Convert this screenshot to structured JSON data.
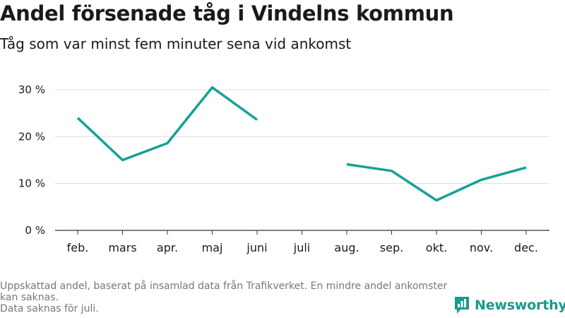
{
  "title": "Andel försenade tåg i Vindelns kommun",
  "subtitle": "Tåg som var minst fem minuter sena vid ankomst",
  "footnote": {
    "line1": "Uppskattad andel, baserat på insamlad data från Trafikverket. En mindre andel ankomster kan saknas.",
    "line2": "Data saknas för juli."
  },
  "brand": {
    "name": "Newsworthy",
    "icon": "newsworthy-logo-icon"
  },
  "colors": {
    "line": "#13a295",
    "grid": "#dddddd",
    "axis": "#333333",
    "text": "#1a1a1a",
    "muted": "#777777"
  },
  "chart_data": {
    "type": "line",
    "title": "Andel försenade tåg i Vindelns kommun",
    "subtitle": "Tåg som var minst fem minuter sena vid ankomst",
    "categories": [
      "feb.",
      "mars",
      "apr.",
      "maj",
      "juni",
      "juli",
      "aug.",
      "sep.",
      "okt.",
      "nov.",
      "dec."
    ],
    "series": [
      {
        "values": [
          24.0,
          15.0,
          18.6,
          30.5,
          23.6,
          null,
          14.1,
          12.7,
          6.4,
          10.8,
          13.4
        ]
      }
    ],
    "ylim": [
      0,
      30
    ],
    "yticks": [
      0,
      10,
      20,
      30
    ],
    "ytick_labels": [
      "0 %",
      "10 %",
      "20 %",
      "30 %"
    ],
    "grid": true,
    "xlabel": "",
    "ylabel": ""
  }
}
